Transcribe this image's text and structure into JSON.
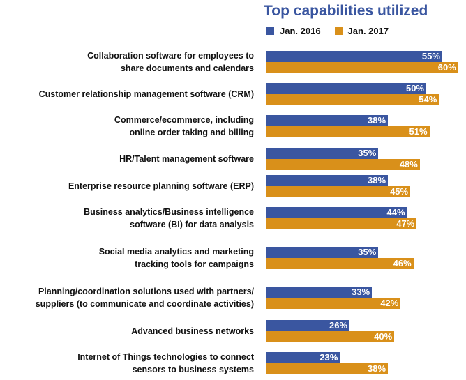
{
  "chart_data": {
    "type": "bar",
    "orientation": "horizontal",
    "title": "Top capabilities utilized",
    "legend_position": "top-right",
    "categories": [
      [
        "Collaboration software for employees to",
        "share documents and calendars"
      ],
      [
        "Customer relationship management software (CRM)"
      ],
      [
        "Commerce/ecommerce, including",
        "online order taking and billing"
      ],
      [
        "HR/Talent management software"
      ],
      [
        "Enterprise resource planning software (ERP)"
      ],
      [
        "Business analytics/Business intelligence",
        "software (BI) for data analysis"
      ],
      [
        "Social media analytics and marketing",
        "tracking tools for campaigns"
      ],
      [
        "Planning/coordination solutions used with partners/",
        "suppliers (to communicate and coordinate activities)"
      ],
      [
        "Advanced business networks"
      ],
      [
        "Internet of Things technologies to connect",
        "sensors to business systems"
      ]
    ],
    "series": [
      {
        "name": "Jan. 2016",
        "color": "#3a56a0",
        "values": [
          55,
          50,
          38,
          35,
          38,
          44,
          35,
          33,
          26,
          23
        ]
      },
      {
        "name": "Jan. 2017",
        "color": "#d9901a",
        "values": [
          60,
          54,
          51,
          48,
          45,
          47,
          46,
          42,
          40,
          38
        ]
      }
    ],
    "value_suffix": "%",
    "grid": false
  }
}
